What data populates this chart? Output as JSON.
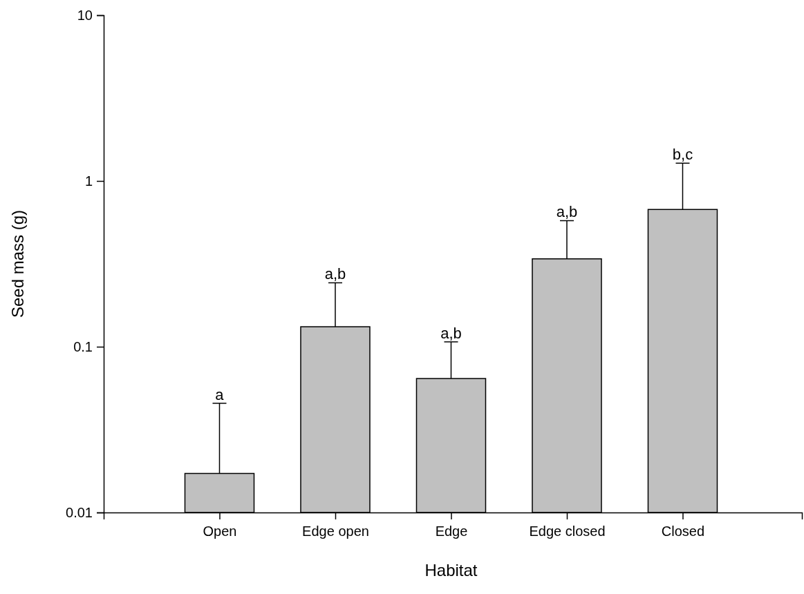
{
  "chart_data": {
    "type": "bar",
    "xlabel": "Habitat",
    "ylabel": "Seed mass (g)",
    "categories": [
      "Open",
      "Edge open",
      "Edge",
      "Edge closed",
      "Closed"
    ],
    "values": [
      0.0172,
      0.132,
      0.0643,
      0.339,
      0.673
    ],
    "errors": [
      [
        0.0172,
        0.0456
      ],
      [
        0.132,
        0.243
      ],
      [
        0.0643,
        0.107
      ],
      [
        0.339,
        0.576
      ],
      [
        0.673,
        1.28
      ]
    ],
    "color": "#c0c0c0",
    "log": "y",
    "ylim": [
      0.01,
      10
    ],
    "yticks": [
      0.01,
      0.1,
      1,
      10
    ],
    "grid": false,
    "annotations": [
      {
        "text": "a",
        "x": "Open",
        "y": 0.0456
      },
      {
        "text": "a,b",
        "x": "Edge open",
        "y": 0.243
      },
      {
        "text": "a,b",
        "x": "Edge",
        "y": 0.107
      },
      {
        "text": "a,b",
        "x": "Edge closed",
        "y": 0.576
      },
      {
        "text": "b,c",
        "x": "Closed",
        "y": 1.28
      }
    ]
  }
}
